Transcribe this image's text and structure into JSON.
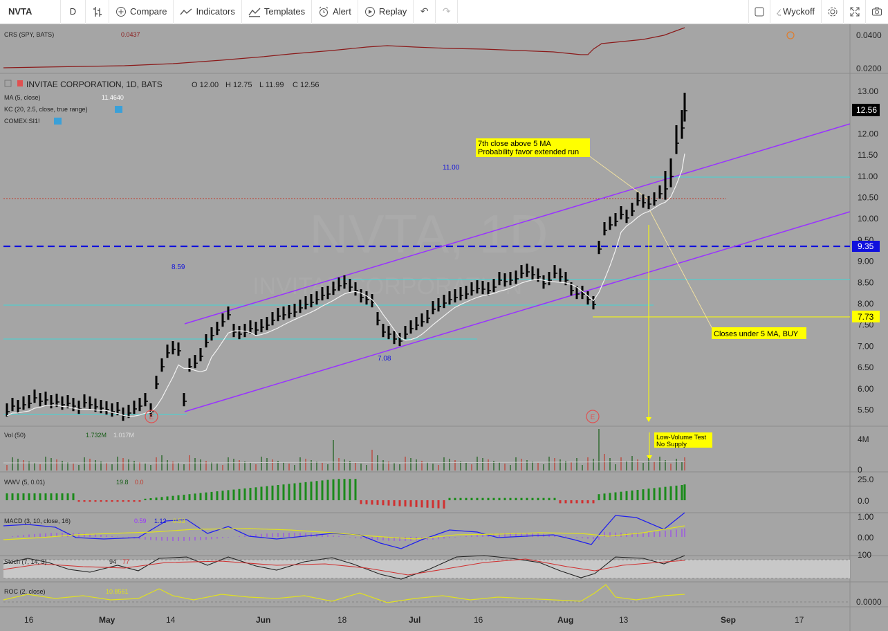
{
  "toolbar": {
    "symbol": "NVTA",
    "interval": "D",
    "bars_icon": "bar-style-icon",
    "compare": "Compare",
    "indicators": "Indicators",
    "templates": "Templates",
    "alert": "Alert",
    "replay": "Replay",
    "layout_name": "Wyckoff"
  },
  "crs_pane": {
    "label": "CRS (SPY, BATS)",
    "value": "0.0437",
    "ticks": [
      "0.0400",
      "0.0200"
    ],
    "line_color": "#8b1a1a"
  },
  "main_pane": {
    "title": "INVITAE CORPORATION, 1D, BATS",
    "ohlc": {
      "o": "O 12.00",
      "h": "H 12.75",
      "l": "L 11.99",
      "c": "C 12.56"
    },
    "ma_label": "MA (5, close)",
    "ma_value": "11.4640",
    "kc_label": "KC (20, 2.5, close, true range)",
    "comex_label": "COMEX:SI1!",
    "watermark_symbol": "NVTA, 1D",
    "watermark_name": "INVITAE CORPORATION",
    "price_ticks": [
      "13.00",
      "12.50",
      "12.00",
      "11.50",
      "11.00",
      "10.50",
      "10.00",
      "9.50",
      "9.00",
      "8.50",
      "8.00",
      "7.50",
      "7.00",
      "6.50",
      "6.00",
      "5.50"
    ],
    "last_price": "12.56",
    "level_9_35": "9.35",
    "level_7_73": "7.73",
    "level_labels": {
      "l1": "11.00",
      "l2": "8.59",
      "l3": "7.08"
    },
    "earnings_marker": "E",
    "annotations": {
      "a1_line1": "7th close above 5 MA",
      "a1_line2": "Probability favor extended run",
      "a2": "Closes under 5 MA, BUY",
      "a3_line1": "Low-Volume Test",
      "a3_line2": "No Supply"
    },
    "colors": {
      "channel": "#9933ff",
      "cyan": "#40d8d8",
      "blue_dash": "#1010dd",
      "yellow": "#ffff00",
      "bars": "#000000",
      "ma": "#f2f2f2"
    }
  },
  "vol_pane": {
    "label": "Vol (50)",
    "v1": "1.732M",
    "v2": "1.017M",
    "ticks": [
      "4M",
      "0"
    ]
  },
  "wwv_pane": {
    "label": "WWV (5, 0.01)",
    "v1": "19.8",
    "v2": "0.0",
    "ticks": [
      "25.0",
      "0.0"
    ]
  },
  "macd_pane": {
    "label": "MACD (3, 10, close, 16)",
    "v1": "0.59",
    "v2": "1.12",
    "v3": "0.53",
    "ticks": [
      "1.00",
      "0.00"
    ]
  },
  "stoch_pane": {
    "label": "Stoch (7, 14, 3)",
    "v1": "94",
    "v2": "77",
    "ticks": [
      "100"
    ]
  },
  "roc_pane": {
    "label": "ROC (2, close)",
    "v1": "10.8561",
    "ticks": [
      "0.0000"
    ]
  },
  "time_axis": [
    "16",
    "May",
    "14",
    "Jun",
    "18",
    "Jul",
    "16",
    "Aug",
    "13",
    "Sep",
    "17"
  ]
}
